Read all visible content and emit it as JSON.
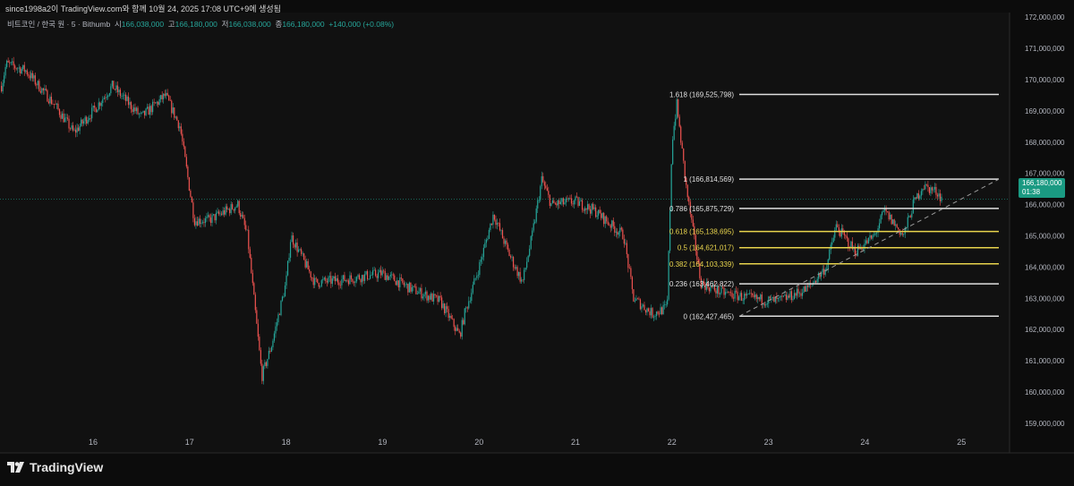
{
  "header": {
    "attribution": "since1998a2이 TradingView.com와 함께 10월 24, 2025 17:08 UTC+9에 생성됨",
    "symbol": "비트코인 / 한국 원 · 5 · Bithumb",
    "open_label": "시",
    "open": "166,038,000",
    "high_label": "고",
    "high": "166,180,000",
    "low_label": "저",
    "low": "166,038,000",
    "close_label": "종",
    "close": "166,180,000",
    "change": "+140,000 (+0.08%)"
  },
  "price_tag": {
    "price": "166,180,000",
    "countdown": "01:38"
  },
  "footer": {
    "brand": "TradingView"
  },
  "colors": {
    "up": "#26a69a",
    "down": "#ef5350",
    "fib_white": "#e0e0e0",
    "fib_yellow": "#e8d44d",
    "price_tag": "#1a9a82"
  },
  "chart_data": {
    "type": "line",
    "title": "",
    "xlabel": "",
    "ylabel": "",
    "x_ticks": [
      "16",
      "17",
      "18",
      "19",
      "20",
      "21",
      "22",
      "23",
      "24",
      "25"
    ],
    "y_ticks": [
      "159,000,000",
      "160,000,000",
      "161,000,000",
      "162,000,000",
      "163,000,000",
      "164,000,000",
      "165,000,000",
      "166,000,000",
      "167,000,000",
      "168,000,000",
      "169,000,000",
      "170,000,000",
      "171,000,000",
      "172,000,000"
    ],
    "ylim": [
      159000000,
      172000000
    ],
    "xlim": [
      15.05,
      25.45
    ],
    "grid": false,
    "series": [
      {
        "x": [
          15.05,
          15.1,
          15.3,
          15.6,
          15.8,
          16.0,
          16.2,
          16.5,
          16.75,
          16.9,
          17.05,
          17.2,
          17.5,
          17.6,
          17.7,
          17.75,
          17.85,
          18.0,
          18.05,
          18.3,
          18.6,
          19.0,
          19.3,
          19.6,
          19.8,
          19.85,
          20.0,
          20.15,
          20.3,
          20.45,
          20.55,
          20.65,
          20.75,
          21.0,
          21.2,
          21.5,
          21.6,
          21.8,
          21.95,
          22.0,
          22.05,
          22.15,
          22.3,
          22.5,
          22.8,
          23.1,
          23.4,
          23.6,
          23.7,
          23.9,
          24.1,
          24.2,
          24.4,
          24.5,
          24.6,
          24.75,
          24.8
        ],
        "y": [
          169800000,
          170500000,
          170300000,
          169200000,
          168300000,
          169000000,
          169800000,
          168800000,
          169500000,
          168500000,
          165500000,
          165500000,
          166000000,
          165000000,
          162000000,
          160500000,
          161500000,
          163500000,
          165000000,
          163500000,
          163600000,
          163800000,
          163300000,
          162900000,
          161800000,
          162500000,
          164000000,
          165700000,
          164500000,
          163500000,
          165000000,
          166800000,
          166000000,
          166100000,
          165800000,
          165000000,
          163000000,
          162500000,
          162700000,
          168000000,
          169200000,
          166500000,
          163500000,
          163200000,
          163000000,
          162900000,
          163300000,
          164000000,
          165300000,
          164500000,
          165000000,
          165800000,
          165000000,
          166000000,
          166600000,
          166400000,
          166180000
        ]
      }
    ],
    "fibonacci": [
      {
        "level": "1.618",
        "price": "169,525,798",
        "color": "white"
      },
      {
        "level": "1",
        "price": "166,814,569",
        "color": "white"
      },
      {
        "level": "0.786",
        "price": "165,875,729",
        "color": "white"
      },
      {
        "level": "0.618",
        "price": "165,138,695",
        "color": "yellow"
      },
      {
        "level": "0.5",
        "price": "164,621,017",
        "color": "yellow"
      },
      {
        "level": "0.382",
        "price": "164,103,339",
        "color": "yellow"
      },
      {
        "level": "0.236",
        "price": "163,462,822",
        "color": "white"
      },
      {
        "level": "0",
        "price": "162,427,465",
        "color": "white"
      }
    ]
  }
}
